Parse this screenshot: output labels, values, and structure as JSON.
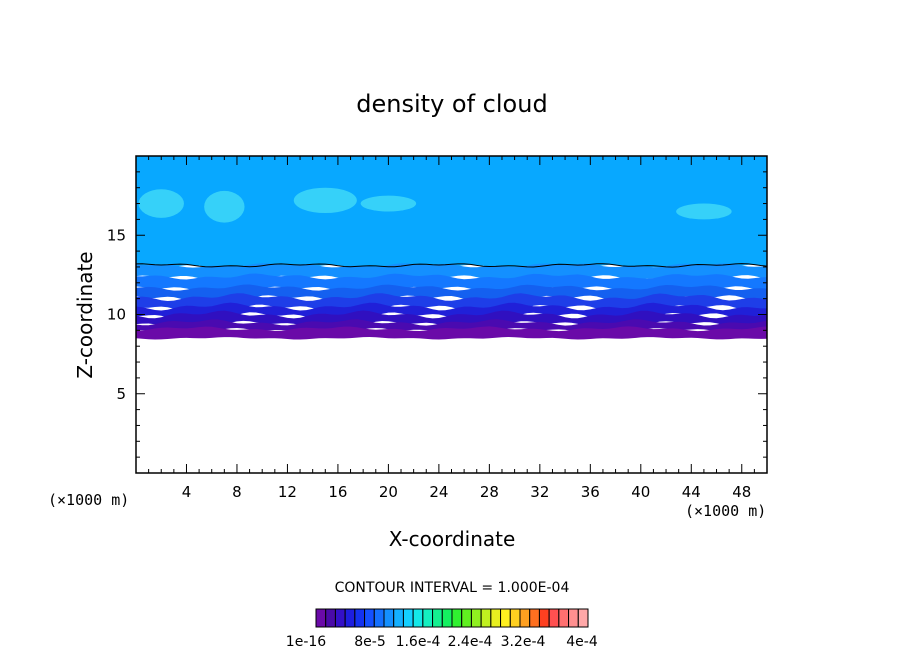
{
  "chart_data": {
    "type": "heatmap",
    "title": "density of cloud",
    "xlabel": "X-coordinate",
    "ylabel": "Z-coordinate",
    "x_unit": "(×1000 m)",
    "y_unit": "(×1000 m)",
    "xlim": [
      0,
      50
    ],
    "ylim": [
      0,
      20
    ],
    "xticks": [
      4,
      8,
      12,
      16,
      20,
      24,
      28,
      32,
      36,
      40,
      44,
      48
    ],
    "yticks": [
      5,
      10,
      15
    ],
    "contour_interval_label": "CONTOUR INTERVAL = 1.000E-04",
    "colorbar": {
      "colors": [
        "#6a0aa8",
        "#4a0aa8",
        "#3410c8",
        "#1e1ee0",
        "#1432f0",
        "#1450ff",
        "#1470ff",
        "#1490ff",
        "#14b0ff",
        "#14d0ff",
        "#14e8e8",
        "#14f0c0",
        "#14f090",
        "#14f060",
        "#30f030",
        "#60f020",
        "#90f020",
        "#c0f020",
        "#e8f020",
        "#fff020",
        "#ffd020",
        "#ffa020",
        "#ff7020",
        "#ff4020",
        "#ff5050",
        "#ff7070",
        "#ff9090",
        "#ffa8a8"
      ],
      "labels": [
        "1e-16",
        "8e-5",
        "1.6e-4",
        "2.4e-4",
        "3.2e-4",
        "4e-4"
      ]
    },
    "field_description_levels": {
      "cloud_base_km": 8.5,
      "dense_layer_km": [
        8.5,
        10.5
      ],
      "mid_layer_km": [
        10.5,
        13.0
      ],
      "upper_layer_km": [
        13.0,
        20.0
      ],
      "contour_line_km": 13.1
    }
  }
}
